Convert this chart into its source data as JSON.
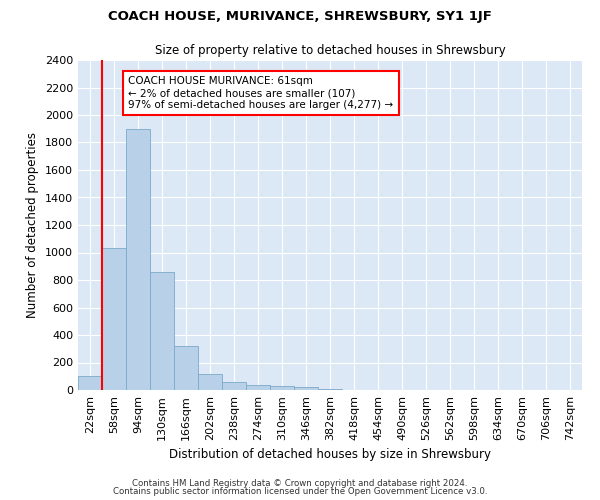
{
  "title": "COACH HOUSE, MURIVANCE, SHREWSBURY, SY1 1JF",
  "subtitle": "Size of property relative to detached houses in Shrewsbury",
  "xlabel": "Distribution of detached houses by size in Shrewsbury",
  "ylabel": "Number of detached properties",
  "bin_labels": [
    "22sqm",
    "58sqm",
    "94sqm",
    "130sqm",
    "166sqm",
    "202sqm",
    "238sqm",
    "274sqm",
    "310sqm",
    "346sqm",
    "382sqm",
    "418sqm",
    "454sqm",
    "490sqm",
    "526sqm",
    "562sqm",
    "598sqm",
    "634sqm",
    "670sqm",
    "706sqm",
    "742sqm"
  ],
  "bar_values": [
    100,
    1030,
    1900,
    860,
    320,
    115,
    55,
    40,
    30,
    20,
    5,
    2,
    0,
    0,
    0,
    0,
    0,
    0,
    0,
    0,
    0
  ],
  "bar_color": "#b8d0e8",
  "bar_edge_color": "#7aaaca",
  "annotation_text": "COACH HOUSE MURIVANCE: 61sqm\n← 2% of detached houses are smaller (107)\n97% of semi-detached houses are larger (4,277) →",
  "annotation_box_color": "white",
  "annotation_box_edge_color": "red",
  "vline_color": "red",
  "vline_x": 1.0,
  "ylim": [
    0,
    2400
  ],
  "yticks": [
    0,
    200,
    400,
    600,
    800,
    1000,
    1200,
    1400,
    1600,
    1800,
    2000,
    2200,
    2400
  ],
  "background_color": "#dce8f5",
  "grid_color": "white",
  "footer1": "Contains HM Land Registry data © Crown copyright and database right 2024.",
  "footer2": "Contains public sector information licensed under the Open Government Licence v3.0."
}
